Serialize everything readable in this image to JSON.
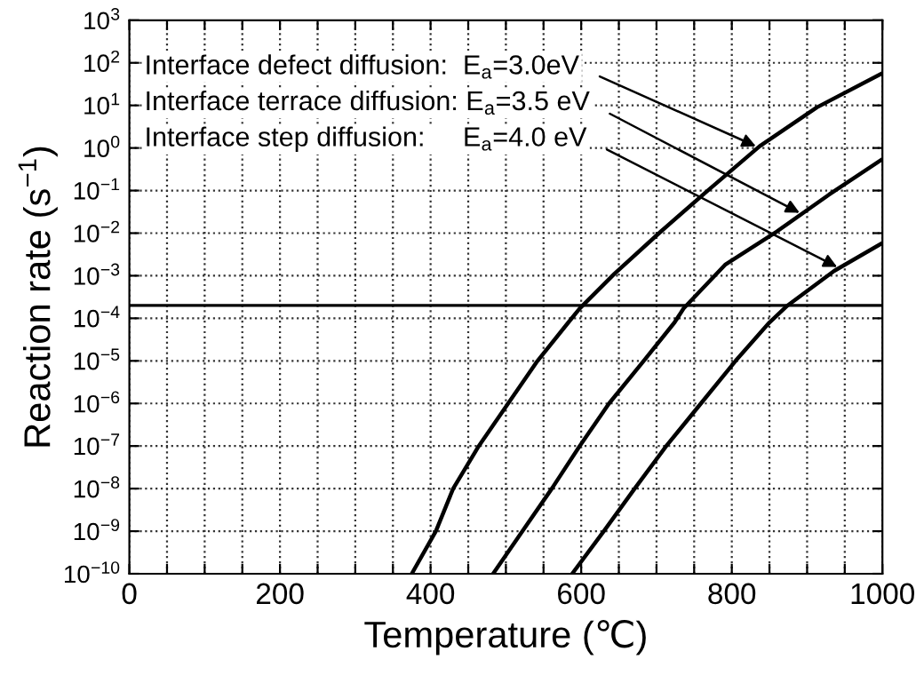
{
  "chart_data": {
    "type": "line",
    "xlabel": "Temperature (℃)",
    "ylabel": "Reaction rate (s$^{−1}$)",
    "log": "y",
    "grid": true,
    "line_style": "solid",
    "marker": "none",
    "xlim": [
      0,
      1000
    ],
    "ylim": [
      1e-10,
      1000
    ],
    "xticks": [
      0,
      {
        "value": 50,
        "label": null
      },
      {
        "value": 100,
        "label": null
      },
      {
        "value": 150,
        "label": null
      },
      200,
      {
        "value": 250,
        "label": null
      },
      {
        "value": 300,
        "label": null
      },
      {
        "value": 350,
        "label": null
      },
      400,
      {
        "value": 450,
        "label": null
      },
      {
        "value": 500,
        "label": null
      },
      {
        "value": 550,
        "label": null
      },
      600,
      {
        "value": 650,
        "label": null
      },
      {
        "value": 700,
        "label": null
      },
      {
        "value": 750,
        "label": null
      },
      800,
      {
        "value": 850,
        "label": null
      },
      {
        "value": 900,
        "label": null
      },
      {
        "value": 950,
        "label": null
      },
      1000
    ],
    "yticks": [
      {
        "value": 1e-10,
        "label": "10$^{−10}$"
      },
      {
        "value": 1e-09,
        "label": "10$^{−9}$"
      },
      {
        "value": 1e-08,
        "label": "10$^{−8}$"
      },
      {
        "value": 1e-07,
        "label": "10$^{−7}$"
      },
      {
        "value": 1e-06,
        "label": "10$^{−6}$"
      },
      {
        "value": 1e-05,
        "label": "10$^{−5}$"
      },
      {
        "value": 0.0001,
        "label": "10$^{−4}$"
      },
      {
        "value": 0.001,
        "label": "10$^{−3}$"
      },
      {
        "value": 0.01,
        "label": "10$^{−2}$"
      },
      {
        "value": 0.1,
        "label": "10$^{−1}$"
      },
      {
        "value": 1,
        "label": "10$^{0}$"
      },
      {
        "value": 10,
        "label": "10$^{1}$"
      },
      {
        "value": 100,
        "label": "10$^{2}$"
      },
      {
        "value": 1000,
        "label": "10$^{3}$"
      }
    ],
    "series": [
      {
        "color": "#000000",
        "x": [
          375,
          407,
          430,
          464,
          503,
          542,
          583,
          598,
          644,
          706,
          768,
          837,
          913,
          998
        ],
        "values": [
          1e-10,
          1e-09,
          1e-08,
          1e-07,
          1e-06,
          1e-05,
          8e-05,
          0.00017,
          0.0011,
          0.011,
          0.1,
          1.1,
          9,
          55
        ]
      },
      {
        "color": "#000000",
        "x": [
          483,
          522,
          561,
          598,
          637,
          683,
          724,
          736,
          791,
          860,
          929,
          998
        ],
        "values": [
          1e-10,
          1e-09,
          1e-08,
          1e-07,
          1e-06,
          1e-05,
          8e-05,
          0.00017,
          0.0018,
          0.011,
          0.08,
          0.52
        ]
      },
      {
        "color": "#000000",
        "x": [
          588,
          630,
          671,
          713,
          759,
          805,
          850,
          874,
          936,
          998
        ],
        "values": [
          1e-10,
          1e-09,
          1e-08,
          1e-07,
          1e-06,
          1e-05,
          8e-05,
          0.0002,
          0.0013,
          0.0056
        ]
      }
    ],
    "ref_lines": [
      {
        "axis": "y",
        "value": 0.0002,
        "label": null,
        "color": "#000000",
        "line_style": "solid"
      }
    ],
    "annotations": [
      {
        "text": "Interface defect diffusion:  E$_{a}$=3.0eV",
        "x": 832,
        "y": 1.1
      },
      {
        "text": "Interface terrace diffusion: E$_{a}$=3.5 eV",
        "x": 890,
        "y": 0.03
      },
      {
        "text": "Interface step diffusion:     E$_{a}$=4.0 eV",
        "x": 940,
        "y": 0.0016
      }
    ]
  }
}
